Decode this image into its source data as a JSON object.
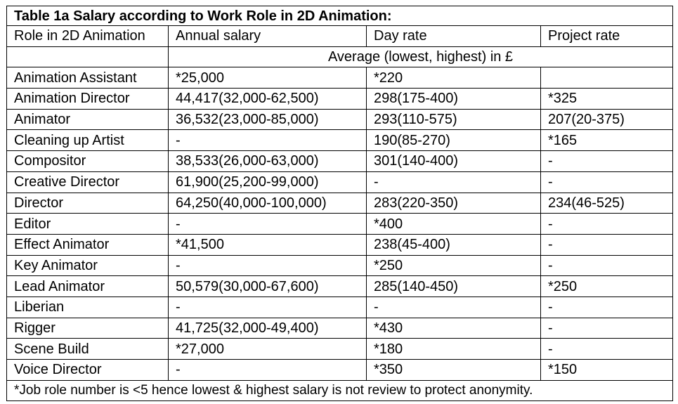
{
  "table": {
    "caption": "Table 1a Salary according to Work Role in 2D Animation:",
    "headers": [
      "Role in 2D Animation",
      "Annual salary",
      "Day rate",
      "Project rate"
    ],
    "subheader": "Average (lowest, highest) in £",
    "rows": [
      [
        "Animation Assistant",
        "*25,000",
        "*220",
        ""
      ],
      [
        "Animation Director",
        "44,417(32,000-62,500)",
        "298(175-400)",
        "*325"
      ],
      [
        "Animator",
        "36,532(23,000-85,000)",
        "293(110-575)",
        "207(20-375)"
      ],
      [
        "Cleaning up Artist",
        "-",
        "190(85-270)",
        "*165"
      ],
      [
        "Compositor",
        "38,533(26,000-63,000)",
        "301(140-400)",
        "-"
      ],
      [
        "Creative Director",
        "61,900(25,200-99,000)",
        "-",
        "-"
      ],
      [
        "Director",
        "64,250(40,000-100,000)",
        "283(220-350)",
        "234(46-525)"
      ],
      [
        "Editor",
        "-",
        "*400",
        "-"
      ],
      [
        "Effect Animator",
        "*41,500",
        "238(45-400)",
        "-"
      ],
      [
        "Key Animator",
        "-",
        "*250",
        "-"
      ],
      [
        "Lead Animator",
        "50,579(30,000-67,600)",
        "285(140-450)",
        "*250"
      ],
      [
        "Liberian",
        "-",
        "-",
        "-"
      ],
      [
        "Rigger",
        "41,725(32,000-49,400)",
        "*430",
        "-"
      ],
      [
        "Scene Build",
        "*27,000",
        "*180",
        "-"
      ],
      [
        "Voice Director",
        "-",
        "*350",
        "*150"
      ]
    ],
    "footnote": "*Job role number is <5 hence lowest & highest salary is not review to protect anonymity."
  }
}
